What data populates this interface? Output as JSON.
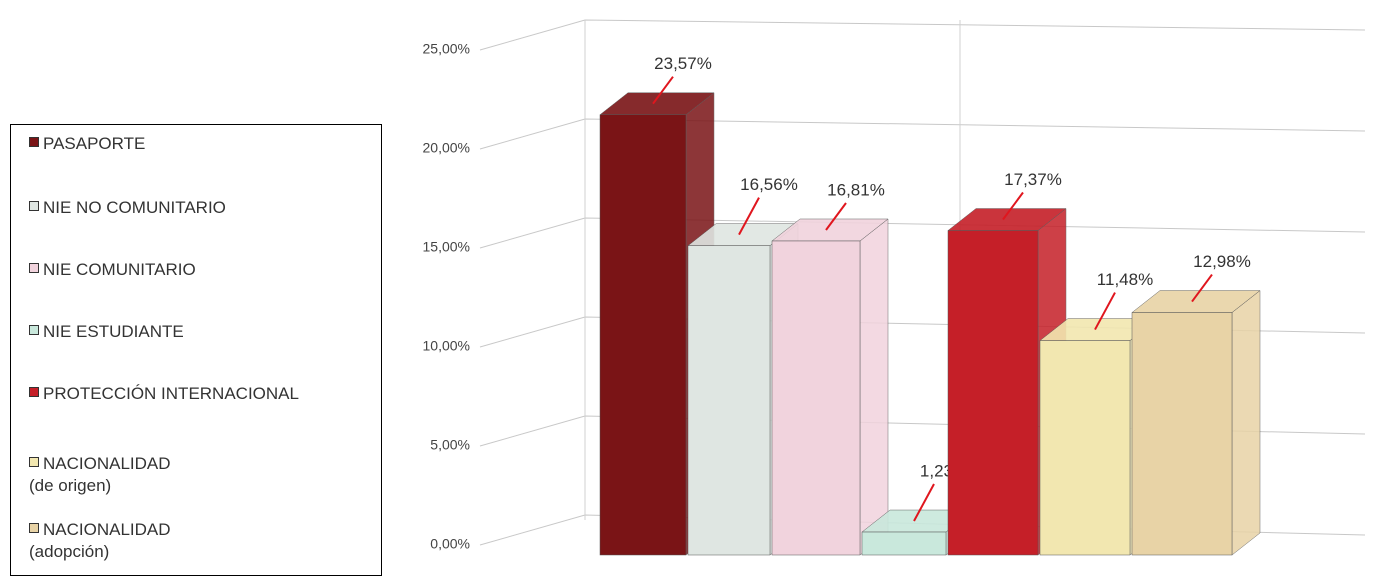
{
  "chart_data": {
    "type": "bar3d",
    "categories": [
      "PASAPORTE",
      "NIE NO COMUNITARIO",
      "NIE COMUNITARIO",
      "NIE ESTUDIANTE",
      "PROTECCIÓN INTERNACIONAL",
      "NACIONALIDAD\n(de origen)",
      "NACIONALIDAD\n(adopción)"
    ],
    "values": [
      23.57,
      16.56,
      16.81,
      1.23,
      17.37,
      11.48,
      12.98
    ],
    "value_labels": [
      "23,57%",
      "16,56%",
      "16,81%",
      "1,23%",
      "17,37%",
      "11,48%",
      "12,98%"
    ],
    "colors": [
      "#7a1416",
      "#dfe6e2",
      "#f1d3dd",
      "#c9e8dc",
      "#c51f28",
      "#f2e7b0",
      "#e8d3a6"
    ],
    "ylim": [
      0,
      25
    ],
    "yticks": [
      {
        "value": 0,
        "label": "0,00%"
      },
      {
        "value": 5,
        "label": "5,00%"
      },
      {
        "value": 10,
        "label": "10,00%"
      },
      {
        "value": 15,
        "label": "15,00%"
      },
      {
        "value": 20,
        "label": "20,00%"
      },
      {
        "value": 25,
        "label": "25,00%"
      }
    ],
    "grid": true
  }
}
